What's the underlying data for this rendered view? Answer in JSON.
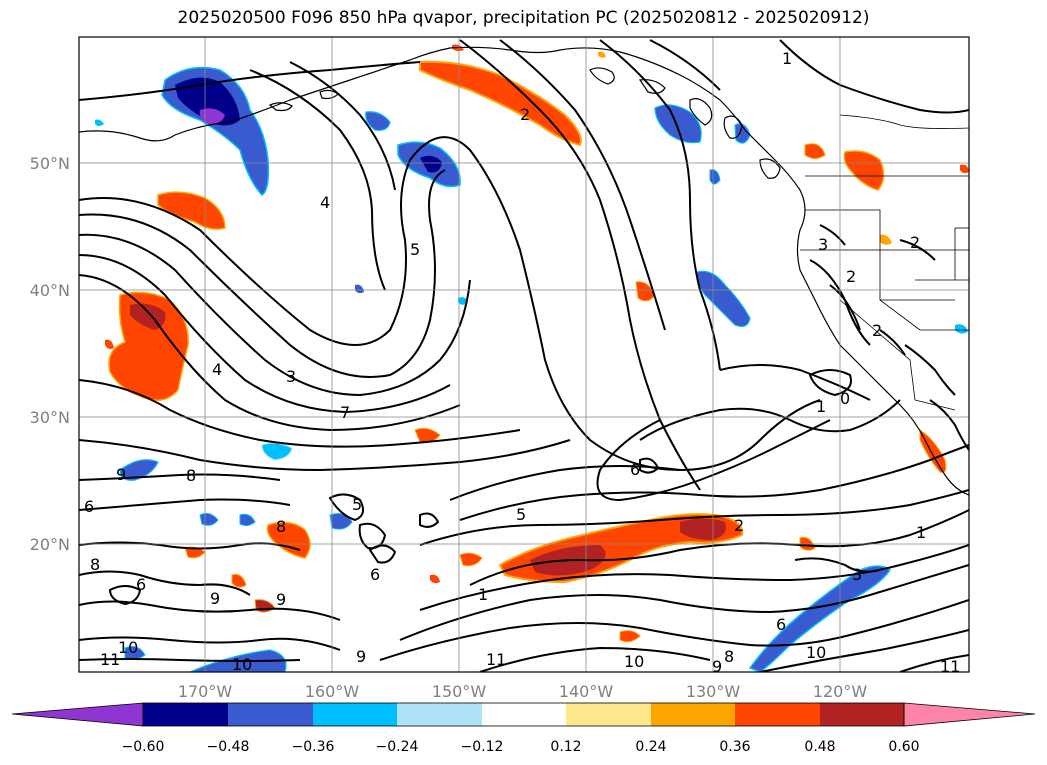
{
  "title": "2025020500 F096 850 hPa qvapor, precipitation PC (2025020812 - 2025020912)",
  "map": {
    "lat_labels": [
      "50°N",
      "40°N",
      "30°N",
      "20°N"
    ],
    "lon_labels": [
      "170°W",
      "160°W",
      "150°W",
      "140°W",
      "130°W",
      "120°W"
    ]
  },
  "contour_labels": [
    "1",
    "2",
    "4",
    "5",
    "3",
    "4",
    "7",
    "9",
    "8",
    "6",
    "8",
    "5",
    "6",
    "8",
    "9",
    "9",
    "6",
    "10",
    "10",
    "9",
    "11",
    "11",
    "10",
    "9",
    "8",
    "6",
    "5",
    "2",
    "1",
    "0",
    "1",
    "3",
    "2",
    "1",
    "10",
    "11",
    "6",
    "2",
    "3",
    "2"
  ],
  "colorbar": {
    "ticks": [
      "−0.60",
      "−0.48",
      "−0.36",
      "−0.24",
      "−0.12",
      "0.12",
      "0.24",
      "0.36",
      "0.48",
      "0.60"
    ],
    "colors": [
      "#8e35d4",
      "#00008b",
      "#3a5bd0",
      "#00bfff",
      "#aee3fa",
      "#ffffff",
      "#fde98b",
      "#ffa500",
      "#ff4500",
      "#b22222",
      "#ff85a8"
    ]
  }
}
